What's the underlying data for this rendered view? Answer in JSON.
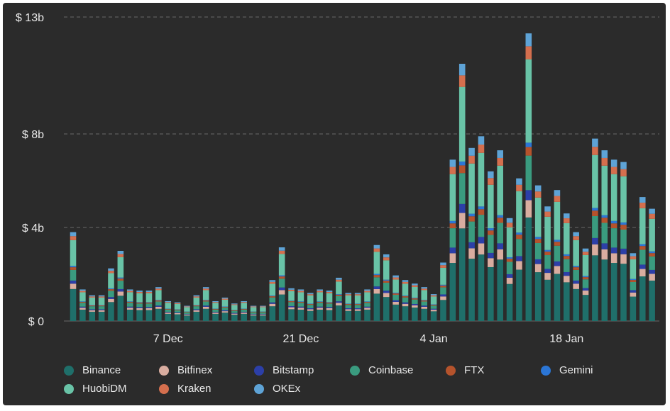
{
  "chart_data": {
    "type": "bar",
    "stacked": true,
    "title": "",
    "xlabel": "",
    "ylabel": "",
    "ylim": [
      0,
      13
    ],
    "y_unit": "billion USD",
    "y_ticks": [
      {
        "value": 0,
        "label": "$ 0"
      },
      {
        "value": 4,
        "label": "$ 4b"
      },
      {
        "value": 8,
        "label": "$ 8b"
      },
      {
        "value": 13,
        "label": "$ 13b"
      }
    ],
    "x_ticks": [
      {
        "date": "2020-12-07",
        "label": "7 Dec"
      },
      {
        "date": "2020-12-21",
        "label": "21 Dec"
      },
      {
        "date": "2021-01-04",
        "label": "4 Jan"
      },
      {
        "date": "2021-01-18",
        "label": "18 Jan"
      }
    ],
    "grid": "horizontal dashed",
    "legend_position": "bottom",
    "categories": [
      "2020-11-27",
      "2020-11-28",
      "2020-11-29",
      "2020-11-30",
      "2020-12-01",
      "2020-12-02",
      "2020-12-03",
      "2020-12-04",
      "2020-12-05",
      "2020-12-06",
      "2020-12-07",
      "2020-12-08",
      "2020-12-09",
      "2020-12-10",
      "2020-12-11",
      "2020-12-12",
      "2020-12-13",
      "2020-12-14",
      "2020-12-15",
      "2020-12-16",
      "2020-12-17",
      "2020-12-18",
      "2020-12-19",
      "2020-12-20",
      "2020-12-21",
      "2020-12-22",
      "2020-12-23",
      "2020-12-24",
      "2020-12-25",
      "2020-12-26",
      "2020-12-27",
      "2020-12-28",
      "2020-12-29",
      "2020-12-30",
      "2020-12-31",
      "2021-01-01",
      "2021-01-02",
      "2021-01-03",
      "2021-01-04",
      "2021-01-05",
      "2021-01-06",
      "2021-01-07",
      "2021-01-08",
      "2021-01-09",
      "2021-01-10",
      "2021-01-11",
      "2021-01-12",
      "2021-01-13",
      "2021-01-14",
      "2021-01-15",
      "2021-01-16",
      "2021-01-17",
      "2021-01-18",
      "2021-01-19",
      "2021-01-20",
      "2021-01-21",
      "2021-01-22",
      "2021-01-23",
      "2021-01-24",
      "2021-01-25"
    ],
    "totals": [
      3.8,
      1.35,
      1.1,
      1.1,
      2.25,
      3.0,
      1.35,
      1.3,
      1.3,
      1.45,
      0.85,
      0.8,
      0.65,
      1.1,
      1.45,
      0.85,
      1.0,
      0.75,
      0.85,
      0.65,
      0.65,
      1.75,
      3.15,
      1.4,
      1.35,
      1.2,
      1.35,
      1.3,
      1.85,
      1.2,
      1.2,
      1.35,
      3.25,
      2.85,
      1.95,
      1.75,
      1.6,
      1.45,
      1.15,
      2.5,
      6.9,
      11.0,
      7.4,
      7.9,
      6.4,
      7.3,
      4.4,
      6.1,
      12.3,
      5.8,
      4.9,
      5.6,
      4.6,
      3.8,
      3.1,
      7.8,
      7.3,
      6.9,
      6.8,
      2.9,
      5.3,
      4.8
    ],
    "totals_note": "Totals are read for every drawn bar; dates array covers bars 1-60, bars 61-62 follow consecutively.",
    "shares": {
      "Binance": 0.36,
      "Bitfinex": 0.06,
      "Bitstamp": 0.035,
      "Coinbase": 0.12,
      "FTX": 0.03,
      "Gemini": 0.015,
      "HuobiDM": 0.29,
      "Kraken": 0.045,
      "OKEx": 0.045
    },
    "series": [
      {
        "name": "Binance",
        "color": "#1f6f6a"
      },
      {
        "name": "Bitfinex",
        "color": "#d9ada0"
      },
      {
        "name": "Bitstamp",
        "color": "#2c3fa8"
      },
      {
        "name": "Coinbase",
        "color": "#3a9b7f"
      },
      {
        "name": "FTX",
        "color": "#b5532c"
      },
      {
        "name": "Gemini",
        "color": "#2b76d6"
      },
      {
        "name": "HuobiDM",
        "color": "#69c3a7"
      },
      {
        "name": "Kraken",
        "color": "#d46f4e"
      },
      {
        "name": "OKEx",
        "color": "#5ea3d6"
      }
    ]
  },
  "legend": {
    "items": [
      {
        "name": "Binance",
        "color": "#1f6f6a"
      },
      {
        "name": "Bitfinex",
        "color": "#d9ada0"
      },
      {
        "name": "Bitstamp",
        "color": "#2c3fa8"
      },
      {
        "name": "Coinbase",
        "color": "#3a9b7f"
      },
      {
        "name": "FTX",
        "color": "#b5532c"
      },
      {
        "name": "Gemini",
        "color": "#2b76d6"
      },
      {
        "name": "HuobiDM",
        "color": "#69c3a7"
      },
      {
        "name": "Kraken",
        "color": "#d46f4e"
      },
      {
        "name": "OKEx",
        "color": "#5ea3d6"
      }
    ]
  },
  "colors": {
    "background": "#2b2b2b",
    "grid": "#6a6a6a",
    "text": "#e8e8e8"
  }
}
